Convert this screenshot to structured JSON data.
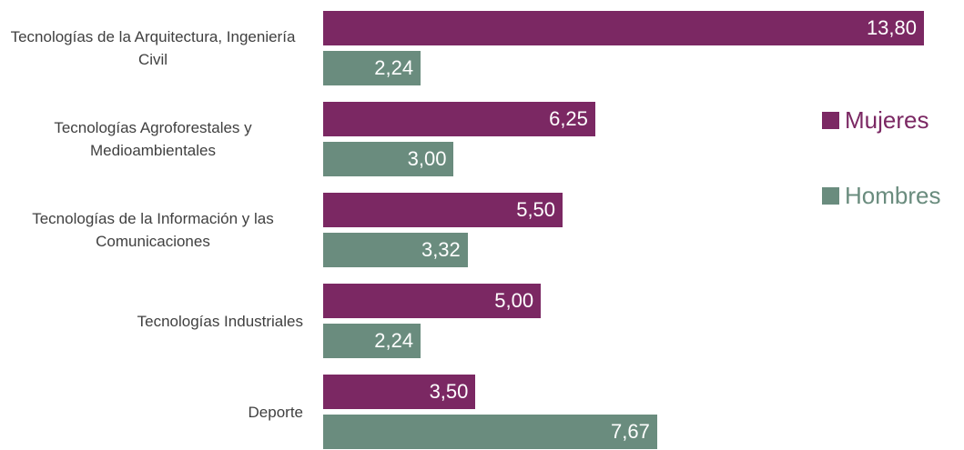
{
  "chart_data": {
    "type": "bar",
    "orientation": "horizontal",
    "categories": [
      "Tecnologías de la Arquitectura, Ingeniería Civil",
      "Tecnologías Agroforestales y Medioambientales",
      "Tecnologías de la Información y las Comunicaciones",
      "Tecnologías Industriales",
      "Deporte"
    ],
    "series": [
      {
        "name": "Mujeres",
        "color": "#7b2863",
        "values": [
          13.8,
          6.25,
          5.5,
          5.0,
          3.5
        ],
        "value_labels": [
          "13,80",
          "6,25",
          "5,50",
          "5,00",
          "3,50"
        ]
      },
      {
        "name": "Hombres",
        "color": "#6a8c7e",
        "values": [
          2.24,
          3.0,
          3.32,
          2.24,
          7.67
        ],
        "value_labels": [
          "2,24",
          "3,00",
          "3,32",
          "2,24",
          "7,67"
        ]
      }
    ],
    "legend": "right"
  }
}
